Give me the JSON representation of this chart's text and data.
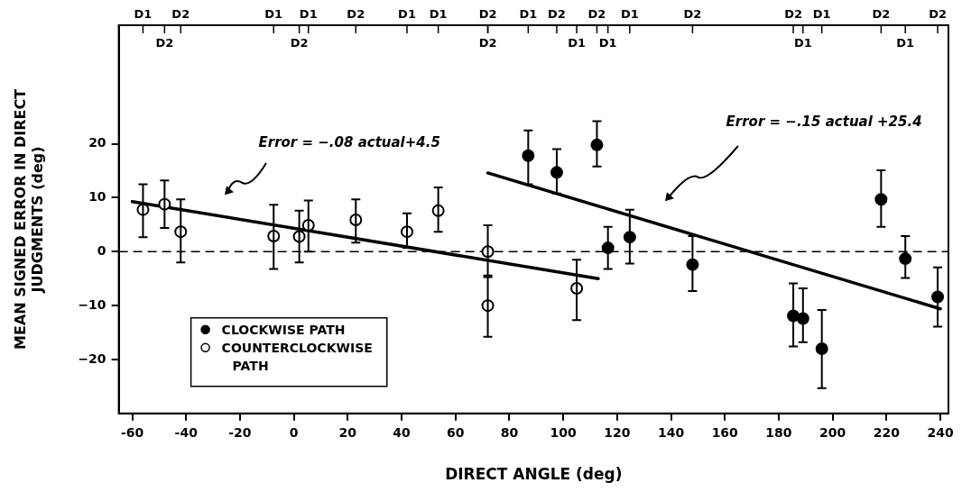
{
  "chart_data": {
    "type": "scatter",
    "xlabel": "DIRECT ANGLE (deg)",
    "ylabel": "MEAN SIGNED ERROR IN DIRECT JUDGMENTS (deg)",
    "xlim": [
      -65,
      243
    ],
    "xticks": [
      -60,
      -40,
      -20,
      0,
      20,
      40,
      60,
      80,
      100,
      120,
      140,
      160,
      180,
      200,
      220,
      240
    ],
    "ylim": [
      -30,
      42
    ],
    "yticks": [
      -20,
      -10,
      0,
      10,
      20
    ],
    "grid": false,
    "legend": "bottom left",
    "marker": "circle",
    "ref_lines": [
      {
        "axis": "y",
        "value": 0,
        "line_style": "dashed",
        "color": "#000000"
      }
    ],
    "annotations": [
      "Error = −.08 actual+4.5",
      "Error = −.15 actual +25.4",
      {
        "text": "D1",
        "x": -56
      },
      {
        "text": "D2",
        "x": -48
      },
      {
        "text": "D2",
        "x": -42
      },
      {
        "text": "D1",
        "x": -7.5
      },
      {
        "text": "D2",
        "x": 2
      },
      {
        "text": "D1",
        "x": 5.4
      },
      {
        "text": "D2",
        "x": 23
      },
      {
        "text": "D1",
        "x": 42
      },
      {
        "text": "D1",
        "x": 53.6
      },
      {
        "text": "D2",
        "x": 72
      },
      {
        "text": "D2",
        "x": 72
      },
      {
        "text": "D1",
        "x": 87
      },
      {
        "text": "D2",
        "x": 97.6
      },
      {
        "text": "D1",
        "x": 105
      },
      {
        "text": "D2",
        "x": 112.5
      },
      {
        "text": "D1",
        "x": 116.6
      },
      {
        "text": "D1",
        "x": 124.7
      },
      {
        "text": "D2",
        "x": 148
      },
      {
        "text": "D2",
        "x": 185.4
      },
      {
        "text": "D1",
        "x": 189
      },
      {
        "text": "D1",
        "x": 196
      },
      {
        "text": "D2",
        "x": 218
      },
      {
        "text": "D1",
        "x": 227
      },
      {
        "text": "D2",
        "x": 239
      }
    ],
    "series": [
      {
        "name": "CLOCKWISE PATH",
        "color": "#000000",
        "x": [
          87,
          97.6,
          112.5,
          116.6,
          124.7,
          148,
          185.4,
          189,
          196,
          218,
          227,
          239
        ],
        "values": [
          17.8,
          14.7,
          19.8,
          0.7,
          2.7,
          -2.4,
          -11.9,
          -12.4,
          -18,
          9.7,
          -1.3,
          -8.4
        ],
        "errors": [
          [
            12.5,
            22.5
          ],
          [
            10.8,
            19
          ],
          [
            15.8,
            24.2
          ],
          [
            -3.2,
            4.6
          ],
          [
            -2.2,
            7.8
          ],
          [
            -7.3,
            2.9
          ],
          [
            -17.6,
            -5.9
          ],
          [
            -16.8,
            -6.8
          ],
          [
            -25.3,
            -10.8
          ],
          [
            4.6,
            15.1
          ],
          [
            -4.9,
            2.9
          ],
          [
            -13.9,
            -2.9
          ]
        ]
      },
      {
        "name": "COUNTERCLOCKWISE PATH",
        "color": "#ffffff",
        "x": [
          -56,
          -48,
          -42,
          -7.5,
          2,
          5.4,
          23,
          42,
          53.6,
          72,
          72,
          105
        ],
        "values": [
          7.8,
          8.8,
          3.7,
          2.9,
          2.8,
          4.9,
          5.9,
          3.7,
          7.6,
          0,
          -10,
          -6.8
        ],
        "errors": [
          [
            2.7,
            12.5
          ],
          [
            4.4,
            13.2
          ],
          [
            -2,
            9.7
          ],
          [
            -3.2,
            8.7
          ],
          [
            -2,
            7.6
          ],
          [
            0,
            9.5
          ],
          [
            1.7,
            9.7
          ],
          [
            0.7,
            7.1
          ],
          [
            3.7,
            11.9
          ],
          [
            -4.4,
            4.9
          ],
          [
            -15.8,
            -4.7
          ],
          [
            -12.7,
            -1.5
          ]
        ]
      },
      {
        "type": "line",
        "color": "#000000",
        "marker": "none",
        "x": [
          -60,
          113
        ],
        "values": [
          9.3,
          -5
        ]
      },
      {
        "type": "line",
        "color": "#000000",
        "marker": "none",
        "x": [
          72,
          240
        ],
        "values": [
          14.6,
          -10.6
        ]
      }
    ]
  }
}
